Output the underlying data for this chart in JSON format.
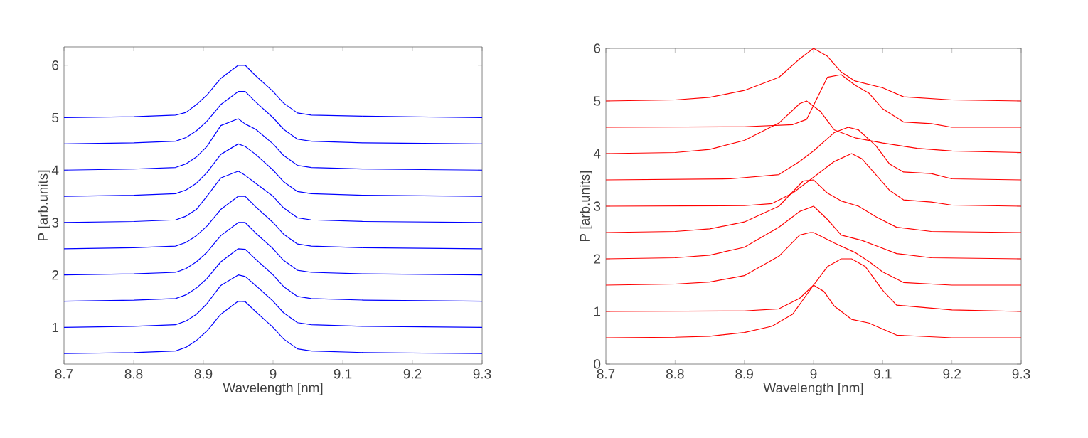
{
  "chart_data": [
    {
      "type": "line",
      "xlabel": "Wavelength [nm]",
      "ylabel": "P [arb.units]",
      "xlim": [
        8.7,
        9.3
      ],
      "ylim": [
        0.3,
        6.35
      ],
      "xticks": [
        8.7,
        8.8,
        8.9,
        9,
        9.1,
        9.2,
        9.3
      ],
      "yticks": [
        1,
        2,
        3,
        4,
        5,
        6
      ],
      "x": [
        8.7,
        8.8,
        8.86,
        8.875,
        8.89,
        8.905,
        8.925,
        8.95,
        8.96,
        8.975,
        9.0,
        9.015,
        9.035,
        9.055,
        9.13,
        9.3
      ],
      "series": [
        {
          "color": "#0000ff",
          "values": [
            0.5,
            0.52,
            0.55,
            0.62,
            0.75,
            0.93,
            1.25,
            1.5,
            1.49,
            1.3,
            1.0,
            0.78,
            0.59,
            0.55,
            0.52,
            0.5
          ]
        },
        {
          "color": "#0000ff",
          "values": [
            1,
            1.02,
            1.05,
            1.12,
            1.25,
            1.45,
            1.8,
            2.0,
            1.97,
            1.8,
            1.5,
            1.28,
            1.09,
            1.05,
            1.02,
            1
          ]
        },
        {
          "color": "#0000ff",
          "values": [
            1.5,
            1.52,
            1.55,
            1.62,
            1.75,
            1.93,
            2.25,
            2.5,
            2.49,
            2.3,
            2.0,
            1.78,
            1.59,
            1.55,
            1.52,
            1.5
          ]
        },
        {
          "color": "#0000ff",
          "values": [
            2,
            2.02,
            2.05,
            2.12,
            2.25,
            2.43,
            2.75,
            3.0,
            3.0,
            2.8,
            2.5,
            2.28,
            2.09,
            2.05,
            2.02,
            2
          ]
        },
        {
          "color": "#0000ff",
          "values": [
            2.5,
            2.52,
            2.55,
            2.62,
            2.75,
            2.93,
            3.25,
            3.5,
            3.5,
            3.3,
            3.0,
            2.78,
            2.59,
            2.55,
            2.52,
            2.5
          ]
        },
        {
          "color": "#0000ff",
          "values": [
            3,
            3.02,
            3.05,
            3.12,
            3.25,
            3.5,
            3.85,
            3.98,
            3.9,
            3.75,
            3.5,
            3.28,
            3.09,
            3.05,
            3.02,
            3
          ]
        },
        {
          "color": "#0000ff",
          "values": [
            3.5,
            3.52,
            3.55,
            3.62,
            3.75,
            3.95,
            4.3,
            4.5,
            4.45,
            4.3,
            4.0,
            3.78,
            3.59,
            3.55,
            3.52,
            3.5
          ]
        },
        {
          "color": "#0000ff",
          "values": [
            4,
            4.02,
            4.05,
            4.12,
            4.25,
            4.45,
            4.85,
            4.98,
            4.88,
            4.78,
            4.5,
            4.28,
            4.09,
            4.05,
            4.02,
            4
          ]
        },
        {
          "color": "#0000ff",
          "values": [
            4.5,
            4.52,
            4.55,
            4.62,
            4.75,
            4.93,
            5.25,
            5.5,
            5.5,
            5.3,
            5.0,
            4.78,
            4.59,
            4.55,
            4.52,
            4.5
          ]
        },
        {
          "color": "#0000ff",
          "values": [
            5,
            5.02,
            5.05,
            5.1,
            5.25,
            5.43,
            5.75,
            6.0,
            6.0,
            5.8,
            5.5,
            5.28,
            5.09,
            5.05,
            5.03,
            5
          ]
        }
      ]
    },
    {
      "type": "line",
      "xlabel": "Wavelength [nm]",
      "ylabel": "P [arb.units]",
      "xlim": [
        8.7,
        9.3
      ],
      "ylim": [
        0,
        6
      ],
      "xticks": [
        8.7,
        8.8,
        8.9,
        9,
        9.1,
        9.2,
        9.3
      ],
      "yticks": [
        0,
        1,
        2,
        3,
        4,
        5,
        6
      ],
      "series": [
        {
          "color": "#ff0000",
          "x": [
            8.7,
            8.8,
            8.85,
            8.9,
            8.94,
            8.97,
            9.0,
            9.015,
            9.03,
            9.055,
            9.08,
            9.12,
            9.2,
            9.3
          ],
          "values": [
            0.5,
            0.51,
            0.53,
            0.6,
            0.72,
            0.95,
            1.5,
            1.38,
            1.1,
            0.85,
            0.78,
            0.55,
            0.5,
            0.5
          ]
        },
        {
          "color": "#ff0000",
          "x": [
            8.7,
            8.9,
            8.95,
            8.98,
            9.0,
            9.02,
            9.04,
            9.055,
            9.075,
            9.1,
            9.12,
            9.2,
            9.3
          ],
          "values": [
            1,
            1.01,
            1.05,
            1.25,
            1.5,
            1.85,
            2.0,
            2.0,
            1.85,
            1.4,
            1.12,
            1.03,
            1.0
          ]
        },
        {
          "color": "#ff0000",
          "x": [
            8.7,
            8.8,
            8.85,
            8.9,
            8.95,
            8.98,
            8.995,
            9.0,
            9.03,
            9.06,
            9.08,
            9.1,
            9.13,
            9.2,
            9.3
          ],
          "values": [
            1.5,
            1.52,
            1.56,
            1.68,
            2.05,
            2.45,
            2.5,
            2.5,
            2.3,
            2.12,
            1.95,
            1.75,
            1.55,
            1.5,
            1.5
          ]
        },
        {
          "color": "#ff0000",
          "x": [
            8.7,
            8.8,
            8.85,
            8.9,
            8.95,
            8.98,
            9.0,
            9.02,
            9.04,
            9.07,
            9.09,
            9.12,
            9.17,
            9.3
          ],
          "values": [
            2,
            2.02,
            2.07,
            2.22,
            2.6,
            2.9,
            3.0,
            2.75,
            2.45,
            2.35,
            2.25,
            2.1,
            2.02,
            2.0
          ]
        },
        {
          "color": "#ff0000",
          "x": [
            8.7,
            8.8,
            8.85,
            8.9,
            8.95,
            8.985,
            9.0,
            9.02,
            9.04,
            9.065,
            9.09,
            9.12,
            9.17,
            9.3
          ],
          "values": [
            2.5,
            2.52,
            2.57,
            2.7,
            3.0,
            3.48,
            3.5,
            3.25,
            3.1,
            3.0,
            2.8,
            2.6,
            2.52,
            2.5
          ]
        },
        {
          "color": "#ff0000",
          "x": [
            8.7,
            8.9,
            8.94,
            8.97,
            9.0,
            9.03,
            9.055,
            9.07,
            9.09,
            9.11,
            9.13,
            9.17,
            9.2,
            9.3
          ],
          "values": [
            3,
            3.01,
            3.05,
            3.25,
            3.55,
            3.85,
            4.0,
            3.9,
            3.6,
            3.3,
            3.12,
            3.08,
            3.02,
            3.0
          ]
        },
        {
          "color": "#ff0000",
          "x": [
            8.7,
            8.88,
            8.95,
            8.98,
            9.0,
            9.03,
            9.05,
            9.065,
            9.09,
            9.11,
            9.13,
            9.17,
            9.2,
            9.3
          ],
          "values": [
            3.5,
            3.52,
            3.6,
            3.85,
            4.05,
            4.4,
            4.5,
            4.45,
            4.15,
            3.8,
            3.65,
            3.62,
            3.52,
            3.5
          ]
        },
        {
          "color": "#ff0000",
          "x": [
            8.7,
            8.8,
            8.85,
            8.9,
            8.95,
            8.98,
            8.99,
            9.01,
            9.03,
            9.06,
            9.1,
            9.15,
            9.2,
            9.3
          ],
          "values": [
            4,
            4.02,
            4.08,
            4.25,
            4.58,
            4.95,
            5.0,
            4.8,
            4.45,
            4.3,
            4.2,
            4.1,
            4.05,
            4.02
          ]
        },
        {
          "color": "#ff0000",
          "x": [
            8.7,
            8.9,
            8.97,
            8.99,
            9.005,
            9.02,
            9.04,
            9.06,
            9.08,
            9.1,
            9.13,
            9.17,
            9.2,
            9.3
          ],
          "values": [
            4.5,
            4.51,
            4.55,
            4.65,
            5.05,
            5.45,
            5.5,
            5.3,
            5.15,
            4.85,
            4.6,
            4.57,
            4.5,
            4.5
          ]
        },
        {
          "color": "#ff0000",
          "x": [
            8.7,
            8.8,
            8.85,
            8.9,
            8.95,
            8.98,
            9.0,
            9.02,
            9.04,
            9.06,
            9.1,
            9.13,
            9.2,
            9.3
          ],
          "values": [
            5,
            5.02,
            5.07,
            5.2,
            5.45,
            5.8,
            6.0,
            5.85,
            5.55,
            5.38,
            5.25,
            5.08,
            5.02,
            5.0
          ]
        }
      ]
    }
  ]
}
